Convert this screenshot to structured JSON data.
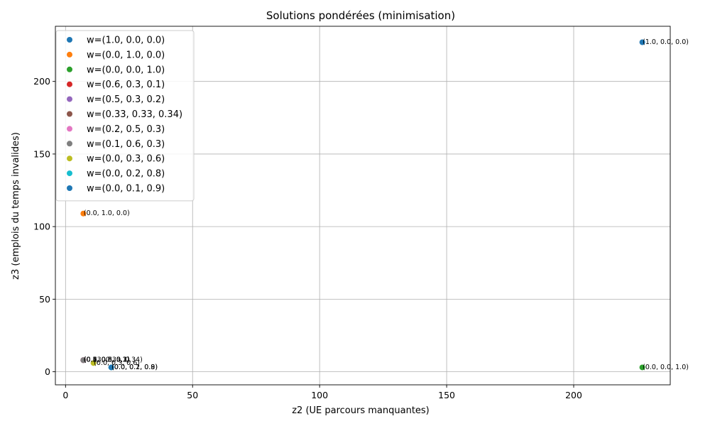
{
  "chart_data": {
    "type": "scatter",
    "title": "Solutions pondérées (minimisation)",
    "xlabel": "z2 (UE parcours manquantes)",
    "ylabel": "z3 (emplois du temps invalides)",
    "xlim": [
      -4,
      238
    ],
    "ylim": [
      -9,
      238
    ],
    "xticks": [
      0,
      50,
      100,
      150,
      200
    ],
    "yticks": [
      0,
      50,
      100,
      150,
      200
    ],
    "grid": true,
    "legend_position": "top-left",
    "series": [
      {
        "name": "w=(1.0, 0.0, 0.0)",
        "color": "#1f77b4",
        "x": 227,
        "y": 227,
        "label": "(1.0, 0.0, 0.0)"
      },
      {
        "name": "w=(0.0, 1.0, 0.0)",
        "color": "#ff7f0e",
        "x": 7,
        "y": 109,
        "label": "(0.0, 1.0, 0.0)"
      },
      {
        "name": "w=(0.0, 0.0, 1.0)",
        "color": "#2ca02c",
        "x": 227,
        "y": 3,
        "label": "(0.0, 0.0, 1.0)"
      },
      {
        "name": "w=(0.6, 0.3, 0.1)",
        "color": "#d62728",
        "x": 7,
        "y": 8,
        "label": "(0.6, 0.3, 0.1)"
      },
      {
        "name": "w=(0.5, 0.3, 0.2)",
        "color": "#9467bd",
        "x": 7,
        "y": 8,
        "label": "(0.5, 0.3, 0.2)"
      },
      {
        "name": "w=(0.33, 0.33, 0.34)",
        "color": "#8c564b",
        "x": 7,
        "y": 8,
        "label": "(0.33, 0.33, 0.34)"
      },
      {
        "name": "w=(0.2, 0.5, 0.3)",
        "color": "#e377c2",
        "x": 7,
        "y": 8,
        "label": "(0.2, 0.5, 0.3)"
      },
      {
        "name": "w=(0.1, 0.6, 0.3)",
        "color": "#7f7f7f",
        "x": 7,
        "y": 8,
        "label": "(0.1, 0.6, 0.3)"
      },
      {
        "name": "w=(0.0, 0.3, 0.6)",
        "color": "#bcbd22",
        "x": 11,
        "y": 6,
        "label": "(0.0, 0.3, 0.6)"
      },
      {
        "name": "w=(0.0, 0.2, 0.8)",
        "color": "#17becf",
        "x": 18,
        "y": 3,
        "label": "(0.0, 0.2, 0.8)"
      },
      {
        "name": "w=(0.0, 0.1, 0.9)",
        "color": "#1f77b4",
        "x": 18,
        "y": 3,
        "label": "(0.0, 0.1, 0.9)"
      }
    ]
  }
}
